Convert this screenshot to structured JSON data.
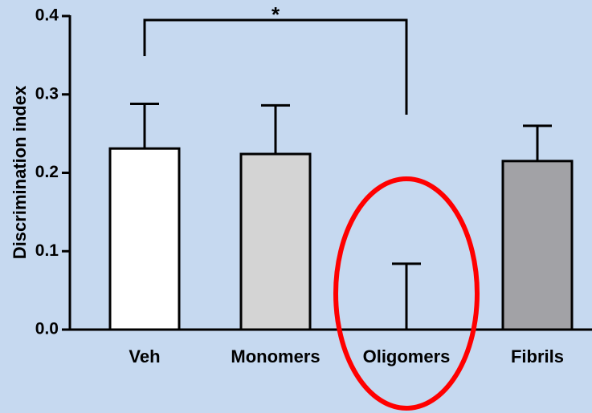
{
  "chart_data": {
    "type": "bar",
    "ylabel": "Discrimination index",
    "categories": [
      "Veh",
      "Monomers",
      "Oligomers",
      "Fibrils"
    ],
    "values": [
      0.231,
      0.224,
      0,
      0.215
    ],
    "errors": [
      0.057,
      0.062,
      0.084,
      0.045
    ],
    "colors": [
      "#ffffff",
      "#d4d4d4",
      "#d4d4d4",
      "#a2a2a6"
    ],
    "ylim": [
      0,
      0.4
    ],
    "yticks": [
      {
        "value": 0,
        "label": "0.0"
      },
      0.1,
      0.2,
      0.3,
      0.4
    ],
    "annotation": "*"
  }
}
